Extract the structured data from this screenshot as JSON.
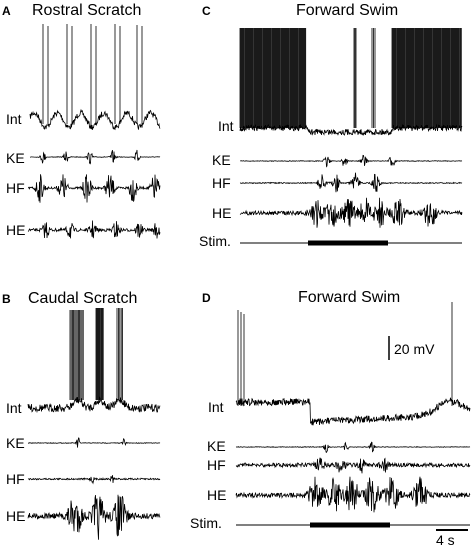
{
  "panels": [
    {
      "letter": "A",
      "title": "Rostral Scratch",
      "traces": [
        "Int",
        "KE",
        "HF",
        "HE"
      ]
    },
    {
      "letter": "B",
      "title": "Caudal Scratch",
      "traces": [
        "Int",
        "KE",
        "HF",
        "HE"
      ]
    },
    {
      "letter": "C",
      "title": "Forward Swim",
      "traces": [
        "Int",
        "KE",
        "HF",
        "HE",
        "Stim."
      ]
    },
    {
      "letter": "D",
      "title": "Forward Swim",
      "traces": [
        "Int",
        "KE",
        "HF",
        "HE",
        "Stim."
      ]
    }
  ],
  "scalebar": {
    "voltage": "20 mV",
    "time": "4 s"
  },
  "colors": {
    "ink": "#000000",
    "background": "#ffffff"
  }
}
